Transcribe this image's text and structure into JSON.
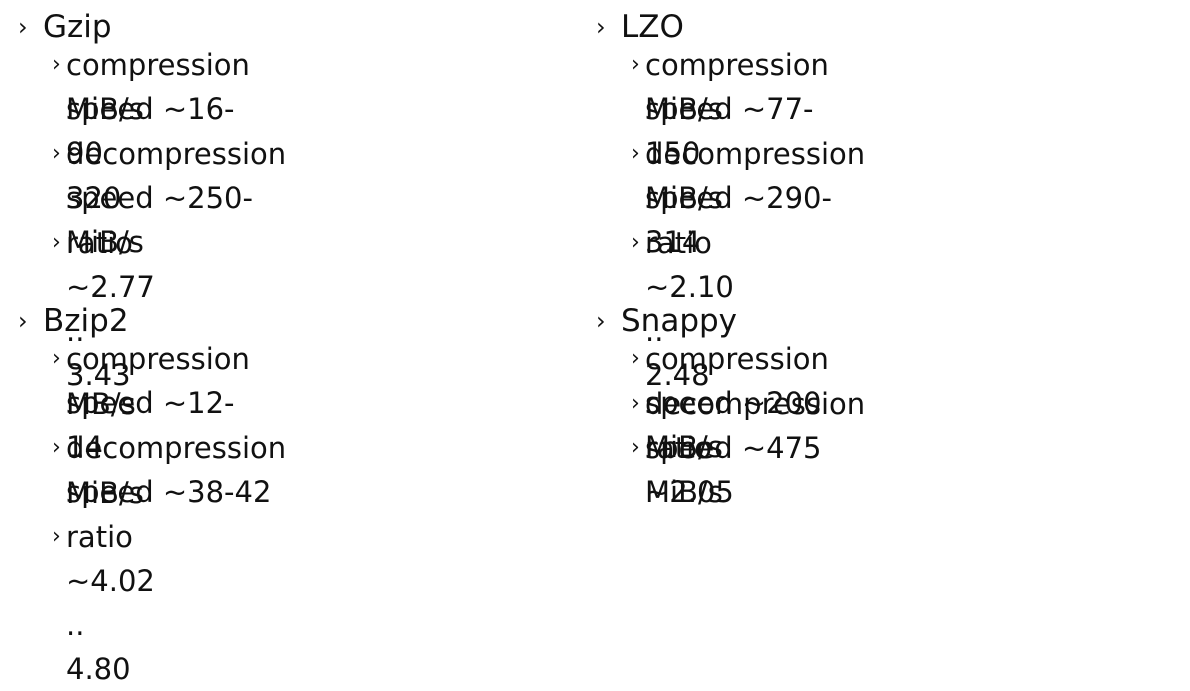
{
  "bullet_glyph": "›",
  "codecs": [
    {
      "name": "Gzip",
      "items": [
        {
          "line1": "compression speed ~16-90",
          "line2": "MiB/s"
        },
        {
          "line1": "decompression speed ~250-",
          "line2": "320 MiB/s"
        },
        {
          "line1": "ratio ~2.77 .. 3.43",
          "line2": ""
        }
      ]
    },
    {
      "name": "Bzip2",
      "items": [
        {
          "line1": "compression speed ~12-14",
          "line2": "MB/s"
        },
        {
          "line1": "decompression speed ~38-42",
          "line2": "MiB/s"
        },
        {
          "line1": "ratio ~4.02 .. 4.80",
          "line2": ""
        }
      ]
    },
    {
      "name": "LZO",
      "items": [
        {
          "line1": "compression speed ~77-150",
          "line2": "MiB/s"
        },
        {
          "line1": "decompression speed ~290-314",
          "line2": "MiB/s"
        },
        {
          "line1": "ratio ~2.10 .. 2.48",
          "line2": ""
        }
      ]
    },
    {
      "name": "Snappy",
      "items": [
        {
          "line1": "compression speed ~200 MiB/s",
          "line2": ""
        },
        {
          "line1": "decompression speed ~475 MiB/s",
          "line2": ""
        },
        {
          "line1": "ratio ~2.05",
          "line2": ""
        }
      ]
    }
  ]
}
